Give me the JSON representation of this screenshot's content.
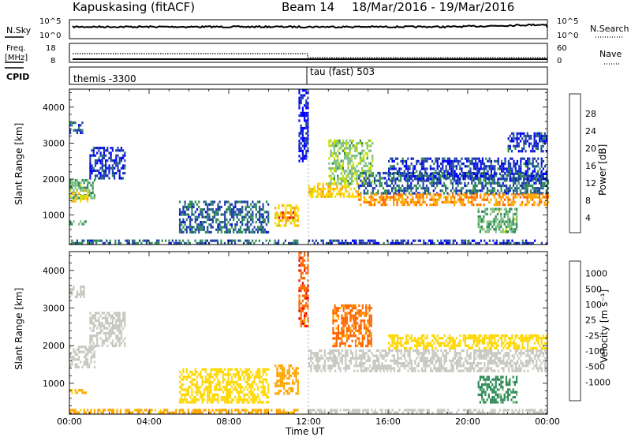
{
  "header": {
    "station": "Kapuskasing (fitACF)",
    "beam": "Beam 14",
    "date_range": "18/Mar/2016 - 19/Mar/2016"
  },
  "top_panels": {
    "nsky_label": "N.Sky",
    "nsearch_label": "N.Search",
    "nsky_ticks": [
      "10^5",
      "10^0"
    ],
    "nsearch_ticks": [
      "10^5",
      "10^0"
    ],
    "freq_label_1": "Freq.",
    "freq_label_2": "[MHz]",
    "freq_ticks": [
      "18",
      "8"
    ],
    "nave_label": "Nave",
    "nave_ticks": [
      "60",
      "0"
    ],
    "cpid_label": "CPID",
    "cpid_1": "themis -3300",
    "cpid_2": "tau (fast) 503"
  },
  "colors": {
    "power": [
      "#0000ff",
      "#1e3fa6",
      "#2e8b57",
      "#7fbf7f",
      "#c8e000",
      "#ffd700",
      "#ffa500",
      "#ff6600",
      "#e00000"
    ],
    "velocity": [
      "#1e3fa6",
      "#2e6b8e",
      "#2e8b57",
      "#7fbf7f",
      "#c8c8c0",
      "#ffd700",
      "#ffa500",
      "#ff6600",
      "#e00000"
    ]
  },
  "chart_data": [
    {
      "type": "heatmap",
      "name": "power",
      "ylabel": "Slant Range [km]",
      "colorbar_label": "Power [dB]",
      "colorbar_ticks": [
        "4",
        "8",
        "12",
        "16",
        "20",
        "24",
        "28"
      ],
      "ylim": [
        180,
        4500
      ],
      "yticks": [
        1000,
        2000,
        3000,
        4000
      ],
      "xlim_hours": [
        0,
        24
      ],
      "xticks": [
        "00:00",
        "04:00",
        "08:00",
        "12:00",
        "16:00",
        "20:00",
        "00:00"
      ],
      "xlabel": "Time UT",
      "regions": [
        {
          "t": [
            0.0,
            1.3
          ],
          "r": [
            1500,
            2000
          ],
          "value": 12
        },
        {
          "t": [
            0.0,
            0.9
          ],
          "r": [
            1350,
            1700
          ],
          "value": 20
        },
        {
          "t": [
            0.0,
            0.7
          ],
          "r": [
            3300,
            3600
          ],
          "value": 8
        },
        {
          "t": [
            0.0,
            0.8
          ],
          "r": [
            750,
            850
          ],
          "value": 12
        },
        {
          "t": [
            1.0,
            2.8
          ],
          "r": [
            2000,
            2900
          ],
          "value": 6
        },
        {
          "t": [
            5.5,
            10.0
          ],
          "r": [
            500,
            1400
          ],
          "value": 8
        },
        {
          "t": [
            0.0,
            11.5
          ],
          "r": [
            200,
            320
          ],
          "value": 8
        },
        {
          "t": [
            10.3,
            11.5
          ],
          "r": [
            700,
            1300
          ],
          "value": 20
        },
        {
          "t": [
            10.5,
            11.3
          ],
          "r": [
            900,
            1100
          ],
          "value": 26
        },
        {
          "t": [
            11.5,
            12.0
          ],
          "r": [
            2500,
            4500
          ],
          "value": 4
        },
        {
          "t": [
            12.0,
            14.5
          ],
          "r": [
            1500,
            1900
          ],
          "value": 20
        },
        {
          "t": [
            13.0,
            15.2
          ],
          "r": [
            1900,
            3100
          ],
          "value": 14
        },
        {
          "t": [
            14.5,
            24.0
          ],
          "r": [
            1600,
            2200
          ],
          "value": 8
        },
        {
          "t": [
            14.5,
            24.0
          ],
          "r": [
            1300,
            1600
          ],
          "value": 24
        },
        {
          "t": [
            16.0,
            24.0
          ],
          "r": [
            2000,
            2600
          ],
          "value": 6
        },
        {
          "t": [
            22.0,
            24.0
          ],
          "r": [
            2800,
            3300
          ],
          "value": 6
        },
        {
          "t": [
            20.5,
            22.5
          ],
          "r": [
            500,
            1200
          ],
          "value": 12
        },
        {
          "t": [
            12.0,
            24.0
          ],
          "r": [
            200,
            320
          ],
          "value": 6
        }
      ]
    },
    {
      "type": "heatmap",
      "name": "velocity",
      "ylabel": "Slant Range [km]",
      "colorbar_label": "Velocity [m s⁻¹]",
      "colorbar_ticks": [
        "-1000",
        "-500",
        "-100",
        "-25",
        "25",
        "100",
        "500",
        "1000"
      ],
      "ylim": [
        180,
        4500
      ],
      "yticks": [
        1000,
        2000,
        3000,
        4000
      ],
      "xlim_hours": [
        0,
        24
      ],
      "xticks": [
        "00:00",
        "04:00",
        "08:00",
        "12:00",
        "16:00",
        "20:00",
        "00:00"
      ],
      "xlabel": "Time UT",
      "regions": [
        {
          "t": [
            0.0,
            1.3
          ],
          "r": [
            1400,
            2000
          ],
          "value": 0
        },
        {
          "t": [
            0.0,
            0.7
          ],
          "r": [
            3300,
            3600
          ],
          "value": 0
        },
        {
          "t": [
            0.0,
            0.8
          ],
          "r": [
            750,
            850
          ],
          "value": -150
        },
        {
          "t": [
            1.0,
            2.8
          ],
          "r": [
            2000,
            2900
          ],
          "value": 0
        },
        {
          "t": [
            5.5,
            10.0
          ],
          "r": [
            500,
            1400
          ],
          "value": -50
        },
        {
          "t": [
            0.0,
            11.5
          ],
          "r": [
            200,
            320
          ],
          "value": -150
        },
        {
          "t": [
            10.3,
            11.5
          ],
          "r": [
            700,
            1500
          ],
          "value": -300
        },
        {
          "t": [
            11.5,
            12.0
          ],
          "r": [
            2500,
            4500
          ],
          "value": -800
        },
        {
          "t": [
            12.0,
            24.0
          ],
          "r": [
            1300,
            1900
          ],
          "value": 0
        },
        {
          "t": [
            13.2,
            15.2
          ],
          "r": [
            2000,
            3100
          ],
          "value": -700
        },
        {
          "t": [
            16.0,
            24.0
          ],
          "r": [
            1900,
            2300
          ],
          "value": -60
        },
        {
          "t": [
            20.5,
            22.5
          ],
          "r": [
            500,
            1200
          ],
          "value": 150
        },
        {
          "t": [
            12.0,
            24.0
          ],
          "r": [
            200,
            320
          ],
          "value": 0
        }
      ]
    }
  ]
}
